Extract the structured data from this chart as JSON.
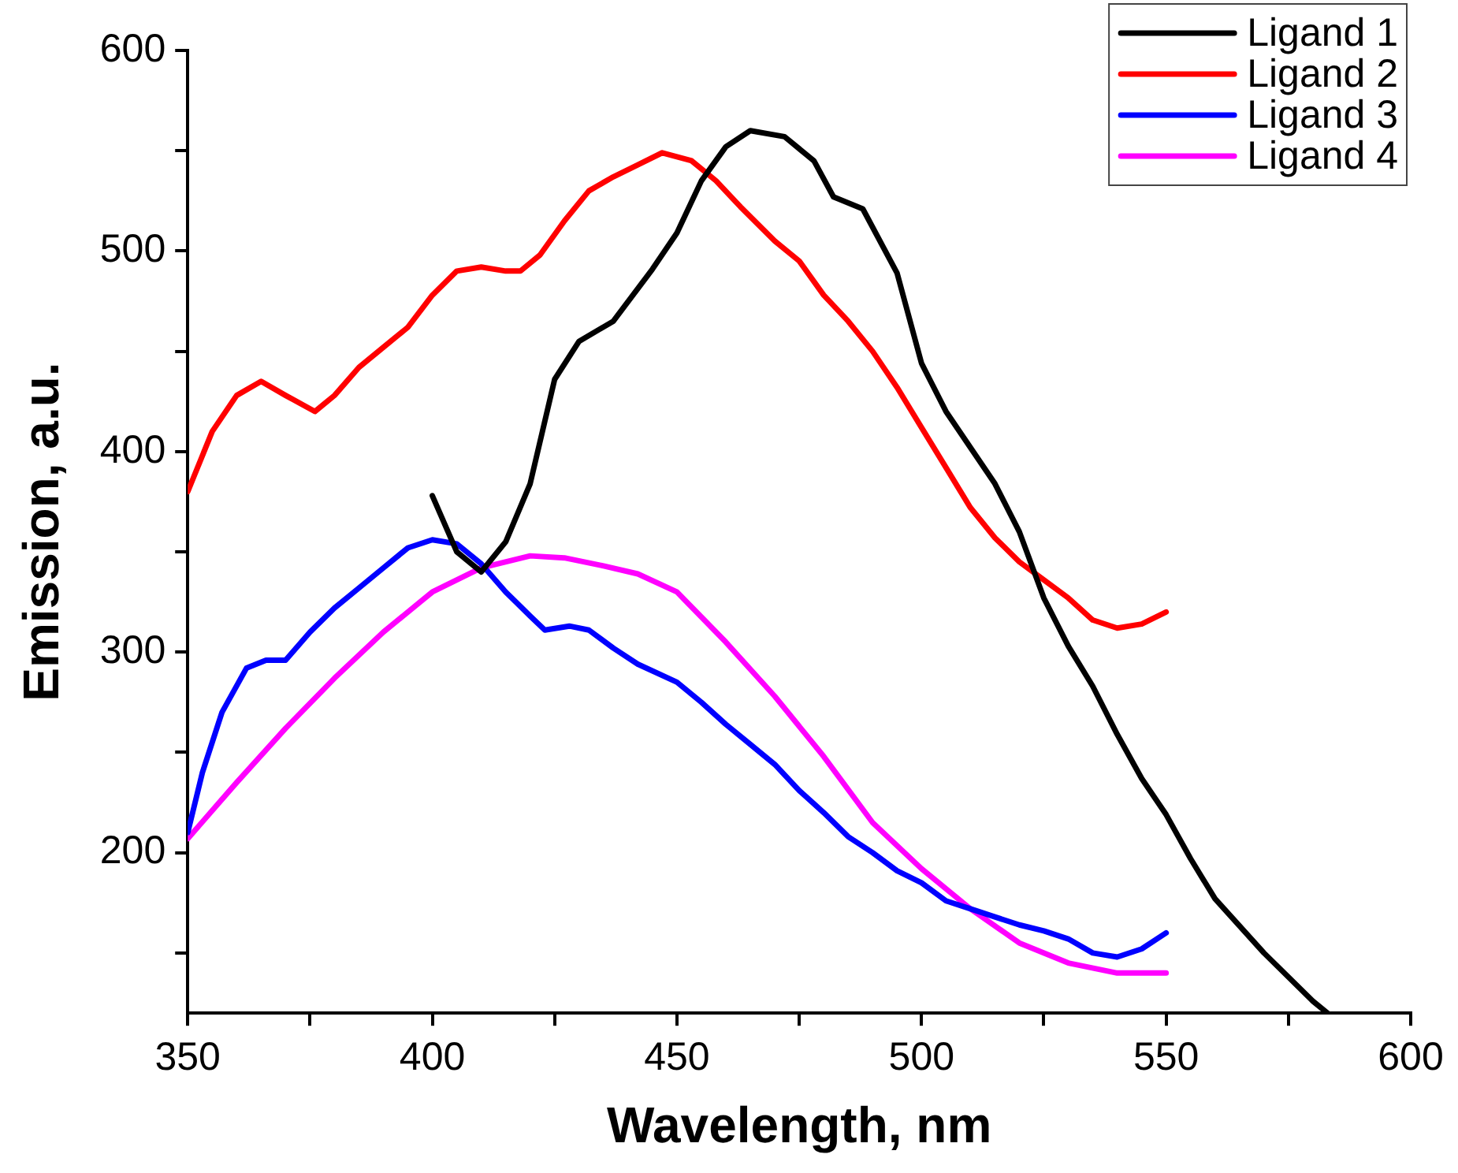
{
  "chart_data": {
    "type": "line",
    "xlabel": "Wavelength, nm",
    "ylabel": "Emission, a.u.",
    "xlim": [
      350,
      600
    ],
    "ylim": [
      120,
      600
    ],
    "xticks": [
      350,
      {
        "value": 375,
        "label": null
      },
      400,
      {
        "value": 425,
        "label": null
      },
      450,
      {
        "value": 475,
        "label": null
      },
      500,
      {
        "value": 525,
        "label": null
      },
      550,
      {
        "value": 575,
        "label": null
      },
      600
    ],
    "yticks": [
      {
        "value": 150,
        "label": null
      },
      200,
      {
        "value": 250,
        "label": null
      },
      300,
      {
        "value": 350,
        "label": null
      },
      400,
      {
        "value": 450,
        "label": null
      },
      500,
      {
        "value": 550,
        "label": null
      },
      600
    ],
    "grid": false,
    "legend": "top right",
    "marker": "none",
    "line_style": "solid",
    "series": [
      {
        "name": "Ligand 1",
        "color": "#000000",
        "x": [
          400,
          405,
          410,
          415,
          420,
          425,
          430,
          437,
          445,
          450,
          455,
          460,
          465,
          472,
          478,
          482,
          488,
          495,
          500,
          505,
          510,
          515,
          520,
          525,
          530,
          535,
          540,
          545,
          550,
          555,
          560,
          570,
          580,
          583
        ],
        "values": [
          378,
          350,
          340,
          355,
          384,
          436,
          455,
          465,
          491,
          509,
          535,
          552,
          560,
          557,
          545,
          527,
          521,
          489,
          444,
          420,
          402,
          384,
          360,
          327,
          303,
          283,
          259,
          237,
          219,
          197,
          177,
          150,
          126,
          120
        ]
      },
      {
        "name": "Ligand 2",
        "color": "#ff0000",
        "x": [
          350,
          355,
          360,
          365,
          370,
          376,
          380,
          385,
          390,
          395,
          400,
          405,
          410,
          415,
          418,
          422,
          427,
          432,
          437,
          442,
          447,
          453,
          458,
          463,
          470,
          475,
          480,
          485,
          490,
          495,
          500,
          505,
          510,
          515,
          520,
          525,
          530,
          535,
          540,
          545,
          550
        ],
        "values": [
          380,
          410,
          428,
          435,
          428,
          420,
          428,
          442,
          452,
          462,
          478,
          490,
          492,
          490,
          490,
          498,
          515,
          530,
          537,
          543,
          549,
          545,
          535,
          522,
          505,
          495,
          478,
          465,
          450,
          432,
          412,
          392,
          372,
          357,
          345,
          336,
          327,
          316,
          312,
          314,
          320
        ]
      },
      {
        "name": "Ligand 3",
        "color": "#0000ff",
        "x": [
          350,
          353,
          357,
          362,
          366,
          370,
          375,
          380,
          385,
          390,
          395,
          400,
          405,
          410,
          415,
          420,
          423,
          428,
          432,
          437,
          442,
          450,
          455,
          460,
          465,
          470,
          475,
          480,
          485,
          490,
          495,
          500,
          505,
          510,
          515,
          520,
          525,
          530,
          535,
          540,
          545,
          550
        ],
        "values": [
          210,
          240,
          270,
          292,
          296,
          296,
          310,
          322,
          332,
          342,
          352,
          356,
          354,
          344,
          330,
          318,
          311,
          313,
          311,
          302,
          294,
          285,
          275,
          264,
          254,
          244,
          231,
          220,
          208,
          200,
          191,
          185,
          176,
          172,
          168,
          164,
          161,
          157,
          150,
          148,
          152,
          160
        ]
      },
      {
        "name": "Ligand 4",
        "color": "#ff00ff",
        "x": [
          350,
          360,
          370,
          380,
          390,
          400,
          410,
          420,
          427,
          435,
          442,
          450,
          460,
          470,
          480,
          490,
          500,
          510,
          520,
          530,
          540,
          550
        ],
        "values": [
          207,
          235,
          262,
          287,
          310,
          330,
          342,
          348,
          347,
          343,
          339,
          330,
          305,
          278,
          248,
          215,
          192,
          172,
          155,
          145,
          140,
          140
        ]
      }
    ]
  }
}
